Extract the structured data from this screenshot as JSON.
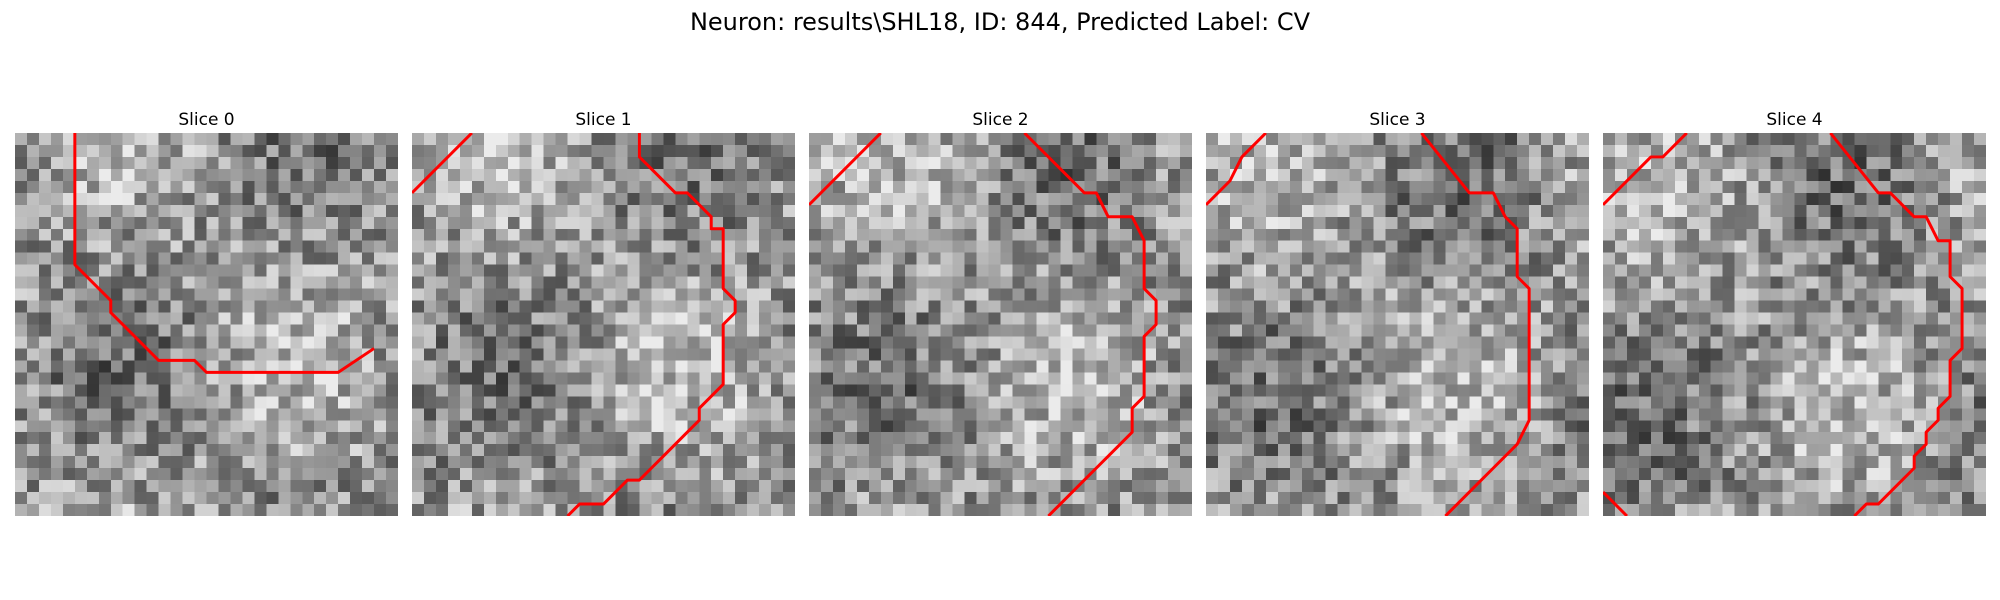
{
  "figure": {
    "suptitle": "Neuron: results\\SHL18, ID: 844, Predicted Label: CV",
    "contour_color": "#ff0000"
  },
  "panels": [
    {
      "title": "Slice 0"
    },
    {
      "title": "Slice 1"
    },
    {
      "title": "Slice 2"
    },
    {
      "title": "Slice 3"
    },
    {
      "title": "Slice 4"
    }
  ]
}
